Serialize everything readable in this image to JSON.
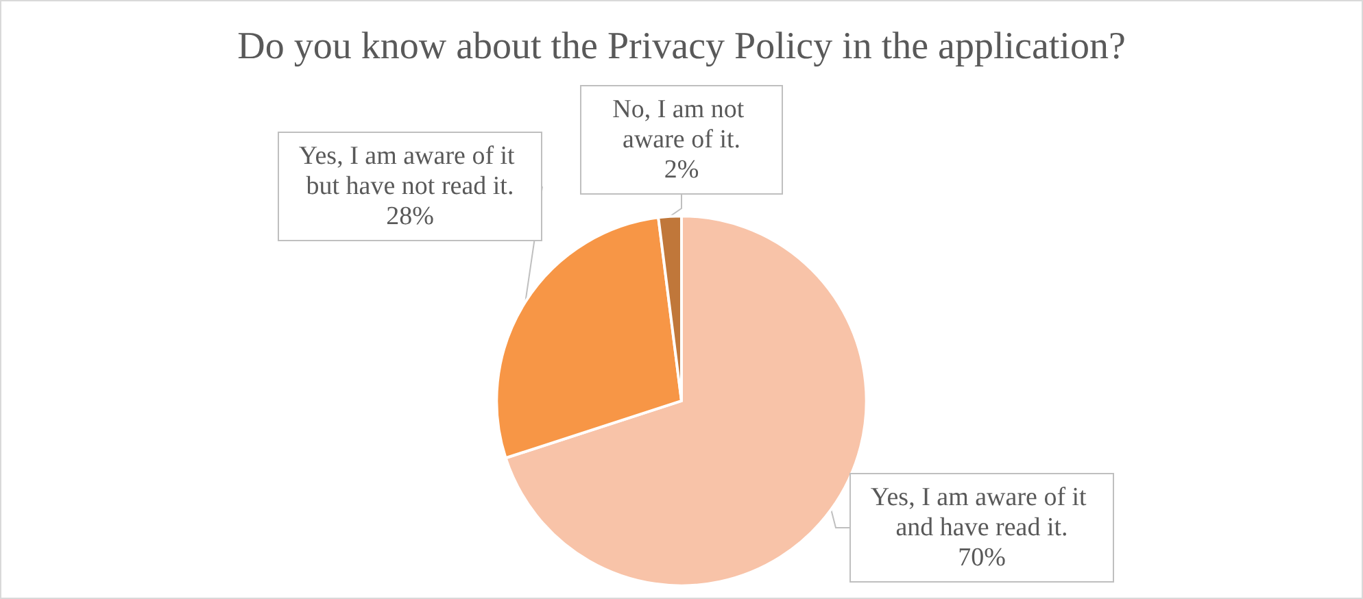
{
  "chart_data": {
    "type": "pie",
    "title": "Do you know about the Privacy Policy in the application?",
    "categories": [
      "Yes, I am aware of it and have read it.",
      "Yes, I am aware of it but have not read it.",
      "No, I am not aware of it."
    ],
    "values": [
      70,
      28,
      2
    ],
    "colors": [
      "#f8c3a8",
      "#f79646",
      "#c0773a"
    ],
    "value_labels": [
      "70%",
      "28%",
      "2%"
    ],
    "legend": false
  }
}
